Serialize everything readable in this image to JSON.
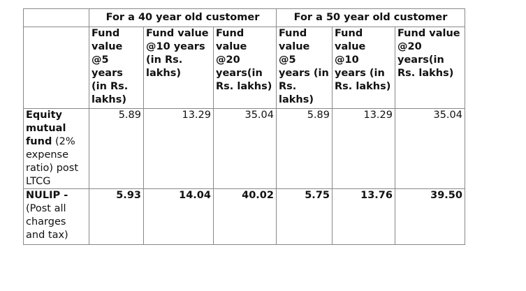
{
  "header": {
    "groups": [
      "For a 40 year old customer",
      "For a 50 year old customer"
    ],
    "columns": [
      "Fund value @5 years (in Rs. lakhs)",
      "Fund value @10 years (in Rs. lakhs)",
      "Fund value @20 years(in Rs. lakhs)",
      "Fund value @5 years (in Rs. lakhs)",
      "Fund value @10 years (in Rs. lakhs)",
      "Fund value @20 years(in Rs. lakhs)"
    ]
  },
  "table": {
    "rows": [
      {
        "label": "Equity mutual fund",
        "note": "(2% expense ratio) post LTCG",
        "values": [
          "5.89",
          "13.29",
          "35.04",
          "5.89",
          "13.29",
          "35.04"
        ]
      },
      {
        "label": "NULIP -",
        "note": "(Post all charges and tax)",
        "values": [
          "5.93",
          "14.04",
          "40.02",
          "5.75",
          "13.76",
          "39.50"
        ]
      }
    ]
  }
}
